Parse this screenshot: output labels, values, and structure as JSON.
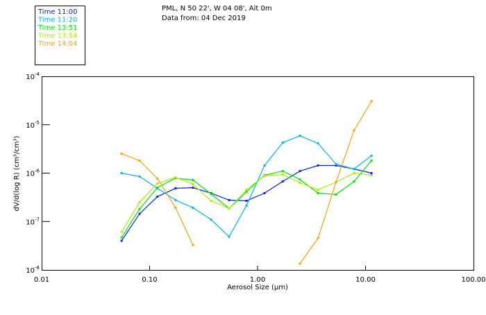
{
  "chart_data": {
    "type": "line",
    "title_lines": [
      "PML, N 50 22', W 04 08', Alt 0m",
      "Data from: 04 Dec 2019"
    ],
    "xlabel": "Aerosol Size (µm)",
    "ylabel": "dV/d(log R) (cm³/cm³)",
    "xscale": "log",
    "yscale": "log",
    "xlim": [
      0.01,
      100
    ],
    "ylim": [
      1e-08,
      0.0001
    ],
    "xticks": [
      0.01,
      0.1,
      1,
      10,
      100
    ],
    "xtick_labels": [
      "0.01",
      "0.10",
      "1.00",
      "10.00",
      "100.00"
    ],
    "yticks": [
      0.0001,
      1e-05,
      1e-06,
      1e-07,
      1e-08
    ],
    "ytick_exponents": [
      "-4",
      "-5",
      "-6",
      "-7",
      "-8"
    ],
    "ytick_base": "10",
    "grid": false,
    "legend_position": "top-left",
    "x": [
      0.055,
      0.0807,
      0.118,
      0.174,
      0.252,
      0.371,
      0.545,
      0.789,
      1.16,
      1.71,
      2.47,
      3.63,
      5.33,
      7.83,
      11.35
    ],
    "series": [
      {
        "name": "Time 11:00",
        "color": "#0022ee",
        "values": [
          4e-08,
          1.44e-07,
          3.27e-07,
          4.85e-07,
          5e-07,
          3.85e-07,
          2.77e-07,
          2.68e-07,
          3.85e-07,
          6.74e-07,
          1.1e-06,
          1.44e-06,
          1.44e-06,
          1.22e-06,
          1e-06
        ]
      },
      {
        "name": "Time 11:20",
        "color": "#00b4f0",
        "values": [
          1e-06,
          8.5e-07,
          4.85e-07,
          2.77e-07,
          1.93e-07,
          1.1e-07,
          4.85e-08,
          2.13e-07,
          1.44e-06,
          4.26e-06,
          5.9e-06,
          4.11e-06,
          1.53e-06,
          1.22e-06,
          2.28e-06
        ]
      },
      {
        "name": "Time 13:51",
        "color": "#00e600",
        "values": [
          4.69e-08,
          1.81e-07,
          5e-07,
          7.9e-07,
          7.2e-07,
          3.72e-07,
          1.87e-07,
          4.11e-07,
          9.06e-07,
          1.1e-06,
          7.4e-07,
          3.85e-07,
          3.6e-07,
          6.74e-07,
          1.81e-06
        ]
      },
      {
        "name": "Time 13:54",
        "color": "#a8f000",
        "values": [
          6.1e-08,
          2.51e-07,
          6.1e-07,
          8.2e-07,
          5.9e-07,
          2.68e-07,
          1.87e-07,
          4.54e-07,
          8.77e-07,
          9.36e-07,
          6.3e-07,
          4.54e-07,
          6.5e-07,
          1e-06,
          9.06e-07
        ]
      },
      {
        "name": "Time 14:04",
        "color": "#ffa000",
        "values": [
          2.51e-06,
          1.81e-06,
          7.7e-07,
          1.93e-07,
          3.27e-08,
          null,
          null,
          null,
          null,
          null,
          1.35e-08,
          4.54e-08,
          6.5e-07,
          7.7e-06,
          3.06e-05
        ]
      }
    ]
  }
}
